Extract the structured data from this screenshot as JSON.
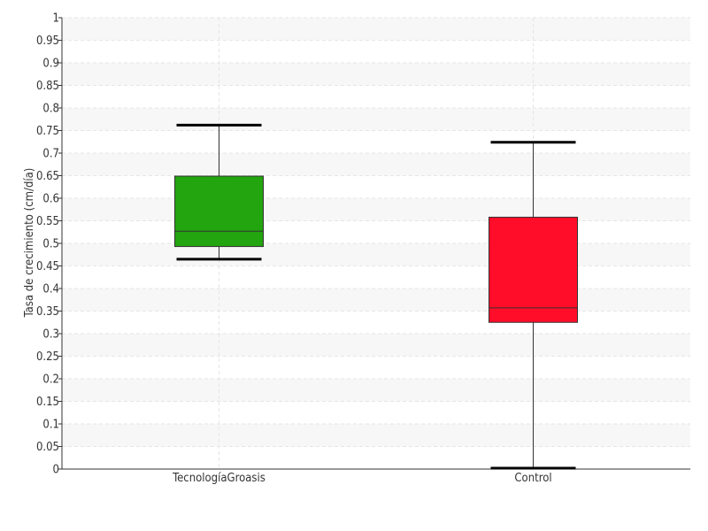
{
  "chart_data": {
    "type": "boxplot",
    "title": "",
    "xlabel": "",
    "ylabel": "Tasa de crecimiento (cm/día)",
    "ylim": [
      0,
      1
    ],
    "yticks": [
      "0",
      "0.05",
      "0.1",
      "0.15",
      "0.2",
      "0.25",
      "0.3",
      "0.35",
      "0.4",
      "0.45",
      "0.5",
      "0.55",
      "0.6",
      "0.65",
      "0.7",
      "0.75",
      "0.8",
      "0.85",
      "0.9",
      "0.95",
      "1"
    ],
    "grid": true,
    "categories": [
      "TecnologíaGroasis",
      "Control"
    ],
    "boxes": [
      {
        "category": "TecnologíaGroasis",
        "min": 0.465,
        "q1": 0.493,
        "median": 0.527,
        "q3": 0.649,
        "max": 0.762,
        "color": "#22a50e"
      },
      {
        "category": "Control",
        "min": 0.002,
        "q1": 0.325,
        "median": 0.357,
        "q3": 0.558,
        "max": 0.724,
        "color": "#ff0d29"
      }
    ]
  }
}
